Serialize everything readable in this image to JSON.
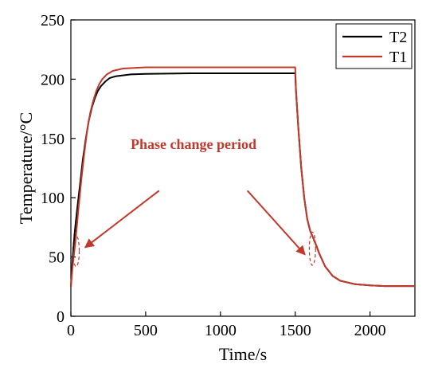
{
  "chart_data": {
    "type": "line",
    "title": "",
    "xlabel": "Time/s",
    "ylabel": "Temperature/°C",
    "xlim": [
      0,
      2300
    ],
    "ylim": [
      0,
      250
    ],
    "xticks": [
      0,
      500,
      1000,
      1500,
      2000
    ],
    "yticks": [
      0,
      50,
      100,
      150,
      200,
      250
    ],
    "grid": false,
    "legend_position": "top-right",
    "series": [
      {
        "name": "T2",
        "color": "#000000",
        "points": [
          [
            0,
            25
          ],
          [
            10,
            45
          ],
          [
            25,
            70
          ],
          [
            40,
            88
          ],
          [
            60,
            110
          ],
          [
            80,
            132
          ],
          [
            100,
            150
          ],
          [
            120,
            165
          ],
          [
            140,
            176
          ],
          [
            160,
            184
          ],
          [
            180,
            190
          ],
          [
            200,
            194
          ],
          [
            230,
            198
          ],
          [
            260,
            201
          ],
          [
            300,
            202.5
          ],
          [
            400,
            204
          ],
          [
            500,
            204.5
          ],
          [
            800,
            205
          ],
          [
            1200,
            205
          ],
          [
            1500,
            205
          ],
          [
            1505,
            190
          ],
          [
            1520,
            160
          ],
          [
            1540,
            125
          ],
          [
            1560,
            100
          ],
          [
            1580,
            82
          ],
          [
            1600,
            72
          ],
          [
            1620,
            66
          ],
          [
            1640,
            60
          ],
          [
            1660,
            53
          ],
          [
            1700,
            42
          ],
          [
            1750,
            34
          ],
          [
            1800,
            30
          ],
          [
            1900,
            27
          ],
          [
            2000,
            26
          ],
          [
            2100,
            25.5
          ],
          [
            2300,
            25.5
          ]
        ]
      },
      {
        "name": "T1",
        "color": "#c0392b",
        "points": [
          [
            0,
            25
          ],
          [
            10,
            40
          ],
          [
            20,
            52
          ],
          [
            30,
            62
          ],
          [
            50,
            90
          ],
          [
            70,
            115
          ],
          [
            90,
            138
          ],
          [
            110,
            158
          ],
          [
            130,
            172
          ],
          [
            150,
            182
          ],
          [
            170,
            190
          ],
          [
            190,
            196
          ],
          [
            210,
            200
          ],
          [
            240,
            204
          ],
          [
            280,
            207
          ],
          [
            350,
            209
          ],
          [
            500,
            210
          ],
          [
            800,
            210
          ],
          [
            1200,
            210
          ],
          [
            1500,
            210
          ],
          [
            1505,
            190
          ],
          [
            1520,
            160
          ],
          [
            1540,
            125
          ],
          [
            1560,
            100
          ],
          [
            1580,
            82
          ],
          [
            1600,
            72
          ],
          [
            1620,
            66
          ],
          [
            1640,
            60
          ],
          [
            1660,
            53
          ],
          [
            1700,
            42
          ],
          [
            1750,
            34
          ],
          [
            1800,
            30
          ],
          [
            1900,
            27
          ],
          [
            2000,
            26
          ],
          [
            2100,
            25.5
          ],
          [
            2300,
            25.5
          ]
        ]
      }
    ],
    "annotations": [
      {
        "text": "Phase change period",
        "color": "#c0392b"
      }
    ],
    "highlight_regions": [
      {
        "x": 35,
        "y": 55,
        "rx": 28,
        "ry": 13
      },
      {
        "x": 1615,
        "y": 57,
        "rx": 28,
        "ry": 14
      }
    ],
    "arrows": [
      {
        "from": [
          590,
          106
        ],
        "to": [
          95,
          58
        ]
      },
      {
        "from": [
          1180,
          106
        ],
        "to": [
          1565,
          52
        ]
      }
    ]
  }
}
